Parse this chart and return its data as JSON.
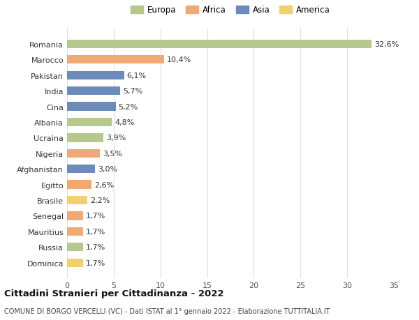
{
  "categories": [
    "Dominica",
    "Russia",
    "Mauritius",
    "Senegal",
    "Brasile",
    "Egitto",
    "Afghanistan",
    "Nigeria",
    "Ucraina",
    "Albania",
    "Cina",
    "India",
    "Pakistan",
    "Marocco",
    "Romania"
  ],
  "values": [
    1.7,
    1.7,
    1.7,
    1.7,
    2.2,
    2.6,
    3.0,
    3.5,
    3.9,
    4.8,
    5.2,
    5.7,
    6.1,
    10.4,
    32.6
  ],
  "colors": [
    "#f0d070",
    "#b5c98e",
    "#f0a875",
    "#f0a875",
    "#f0d070",
    "#f0a875",
    "#6b8cba",
    "#f0a875",
    "#b5c98e",
    "#b5c98e",
    "#6b8cba",
    "#6b8cba",
    "#6b8cba",
    "#f0a875",
    "#b5c98e"
  ],
  "labels": [
    "1,7%",
    "1,7%",
    "1,7%",
    "1,7%",
    "2,2%",
    "2,6%",
    "3,0%",
    "3,5%",
    "3,9%",
    "4,8%",
    "5,2%",
    "5,7%",
    "6,1%",
    "10,4%",
    "32,6%"
  ],
  "legend": [
    {
      "label": "Europa",
      "color": "#b5c98e"
    },
    {
      "label": "Africa",
      "color": "#f0a875"
    },
    {
      "label": "Asia",
      "color": "#6b8cba"
    },
    {
      "label": "America",
      "color": "#f0d070"
    }
  ],
  "xlim": [
    0,
    35
  ],
  "xticks": [
    0,
    5,
    10,
    15,
    20,
    25,
    30,
    35
  ],
  "title": "Cittadini Stranieri per Cittadinanza - 2022",
  "subtitle": "COMUNE DI BORGO VERCELLI (VC) - Dati ISTAT al 1° gennaio 2022 - Elaborazione TUTTITALIA.IT",
  "background_color": "#ffffff",
  "grid_color": "#e0e0e0",
  "bar_height": 0.55
}
